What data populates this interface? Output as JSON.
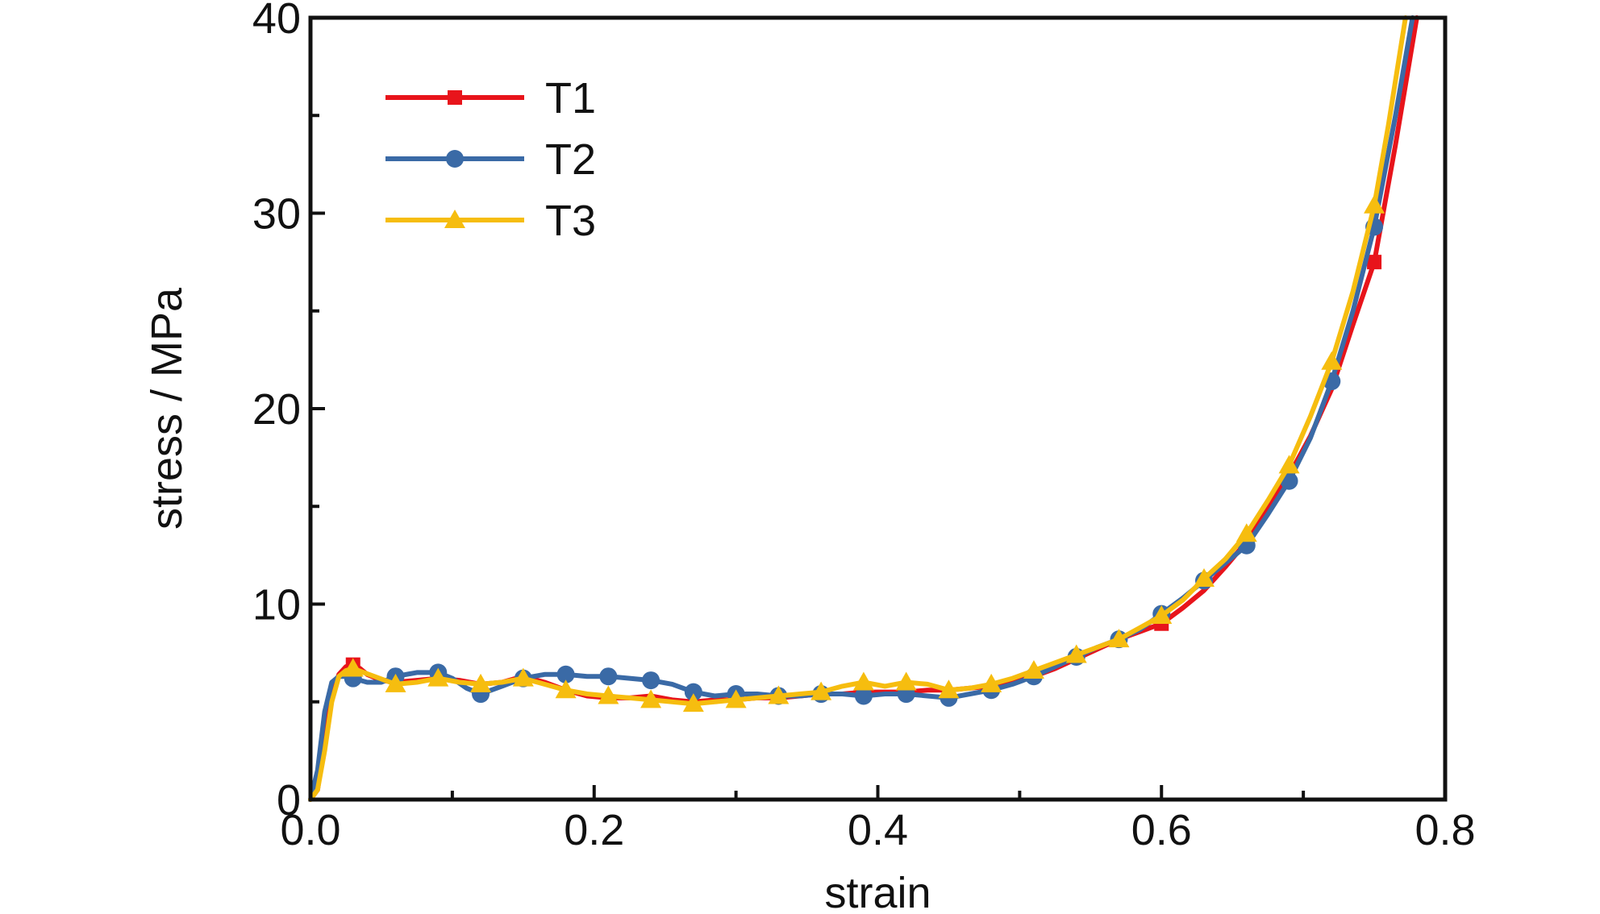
{
  "chart_data": {
    "type": "line",
    "title": "",
    "xlabel": "strain",
    "ylabel": "stress / MPa",
    "xlim": [
      0.0,
      0.8
    ],
    "ylim": [
      0,
      40
    ],
    "x_ticks": [
      0.0,
      0.2,
      0.4,
      0.6,
      0.8
    ],
    "x_tick_labels": [
      "0.0",
      "0.2",
      "0.4",
      "0.6",
      "0.8"
    ],
    "y_ticks": [
      0,
      10,
      20,
      30,
      40
    ],
    "y_tick_labels": [
      "0",
      "10",
      "20",
      "30",
      "40"
    ],
    "grid": false,
    "legend_position": "top-left",
    "series": [
      {
        "name": "T1",
        "color": "#e8141b",
        "marker": "square",
        "x": [
          0.0,
          0.005,
          0.01,
          0.015,
          0.02,
          0.025,
          0.03,
          0.035,
          0.04,
          0.05,
          0.06,
          0.075,
          0.09,
          0.105,
          0.12,
          0.135,
          0.15,
          0.165,
          0.18,
          0.195,
          0.21,
          0.225,
          0.24,
          0.255,
          0.27,
          0.285,
          0.3,
          0.315,
          0.33,
          0.345,
          0.36,
          0.375,
          0.39,
          0.405,
          0.42,
          0.435,
          0.45,
          0.465,
          0.48,
          0.495,
          0.51,
          0.525,
          0.54,
          0.555,
          0.57,
          0.585,
          0.6,
          0.615,
          0.63,
          0.645,
          0.66,
          0.675,
          0.69,
          0.705,
          0.72,
          0.735,
          0.75,
          0.765,
          0.78
        ],
        "y": [
          0.0,
          0.5,
          3.0,
          5.3,
          6.4,
          6.8,
          6.9,
          6.7,
          6.4,
          6.1,
          6.0,
          6.1,
          6.2,
          6.1,
          5.9,
          6.0,
          6.3,
          6.0,
          5.6,
          5.3,
          5.2,
          5.2,
          5.3,
          5.1,
          5.0,
          5.1,
          5.1,
          5.2,
          5.2,
          5.3,
          5.4,
          5.4,
          5.5,
          5.5,
          5.5,
          5.6,
          5.6,
          5.7,
          5.8,
          6.0,
          6.3,
          6.7,
          7.2,
          7.7,
          8.2,
          8.6,
          9.0,
          9.8,
          10.7,
          11.9,
          13.2,
          15.0,
          16.6,
          18.6,
          21.0,
          24.3,
          27.5,
          33.5,
          40.0
        ],
        "marker_x": [
          0.03,
          0.6,
          0.75
        ]
      },
      {
        "name": "T2",
        "color": "#3a6aa6",
        "marker": "circle",
        "x": [
          0.0,
          0.005,
          0.01,
          0.015,
          0.02,
          0.025,
          0.03,
          0.04,
          0.05,
          0.06,
          0.075,
          0.09,
          0.1,
          0.11,
          0.12,
          0.135,
          0.15,
          0.165,
          0.18,
          0.195,
          0.21,
          0.225,
          0.24,
          0.255,
          0.27,
          0.285,
          0.3,
          0.315,
          0.33,
          0.345,
          0.36,
          0.375,
          0.39,
          0.405,
          0.42,
          0.435,
          0.45,
          0.465,
          0.48,
          0.495,
          0.51,
          0.525,
          0.54,
          0.555,
          0.57,
          0.585,
          0.6,
          0.615,
          0.63,
          0.645,
          0.66,
          0.675,
          0.69,
          0.705,
          0.72,
          0.735,
          0.75,
          0.765,
          0.777
        ],
        "y": [
          0.0,
          1.5,
          4.5,
          6.0,
          6.3,
          6.3,
          6.2,
          6.0,
          6.0,
          6.3,
          6.5,
          6.5,
          6.2,
          5.7,
          5.4,
          5.8,
          6.2,
          6.4,
          6.4,
          6.3,
          6.3,
          6.2,
          6.1,
          5.9,
          5.5,
          5.3,
          5.4,
          5.4,
          5.3,
          5.3,
          5.4,
          5.4,
          5.3,
          5.4,
          5.4,
          5.3,
          5.2,
          5.4,
          5.6,
          5.9,
          6.3,
          6.8,
          7.3,
          7.8,
          8.2,
          8.7,
          9.5,
          10.3,
          11.2,
          12.1,
          13.0,
          14.6,
          16.3,
          18.5,
          21.4,
          25.0,
          29.3,
          35.0,
          40.0
        ],
        "marker_x": [
          0.03,
          0.06,
          0.09,
          0.12,
          0.15,
          0.18,
          0.21,
          0.24,
          0.27,
          0.3,
          0.33,
          0.36,
          0.39,
          0.42,
          0.45,
          0.48,
          0.51,
          0.54,
          0.57,
          0.6,
          0.63,
          0.66,
          0.69,
          0.72,
          0.75
        ]
      },
      {
        "name": "T3",
        "color": "#f6bd0f",
        "marker": "triangle",
        "x": [
          0.0,
          0.005,
          0.01,
          0.015,
          0.02,
          0.025,
          0.03,
          0.045,
          0.06,
          0.075,
          0.09,
          0.105,
          0.12,
          0.135,
          0.15,
          0.165,
          0.18,
          0.195,
          0.21,
          0.225,
          0.24,
          0.255,
          0.27,
          0.285,
          0.3,
          0.315,
          0.33,
          0.345,
          0.36,
          0.375,
          0.39,
          0.405,
          0.42,
          0.435,
          0.45,
          0.465,
          0.48,
          0.495,
          0.51,
          0.525,
          0.54,
          0.555,
          0.57,
          0.585,
          0.6,
          0.615,
          0.63,
          0.645,
          0.66,
          0.675,
          0.69,
          0.705,
          0.72,
          0.735,
          0.75,
          0.76,
          0.772
        ],
        "y": [
          0.0,
          0.5,
          2.5,
          5.0,
          6.3,
          6.6,
          6.7,
          6.3,
          5.9,
          6.0,
          6.2,
          6.0,
          5.9,
          6.0,
          6.2,
          5.9,
          5.6,
          5.4,
          5.3,
          5.2,
          5.1,
          5.0,
          4.9,
          5.0,
          5.1,
          5.2,
          5.3,
          5.4,
          5.5,
          5.8,
          6.0,
          5.8,
          6.0,
          5.9,
          5.6,
          5.7,
          5.9,
          6.2,
          6.6,
          7.0,
          7.4,
          7.8,
          8.2,
          8.8,
          9.4,
          10.2,
          11.3,
          12.3,
          13.6,
          15.3,
          17.1,
          19.6,
          22.4,
          26.0,
          30.4,
          34.5,
          40.0
        ],
        "marker_x": [
          0.03,
          0.06,
          0.09,
          0.12,
          0.15,
          0.18,
          0.21,
          0.24,
          0.27,
          0.3,
          0.33,
          0.36,
          0.39,
          0.42,
          0.45,
          0.48,
          0.51,
          0.54,
          0.57,
          0.6,
          0.63,
          0.66,
          0.69,
          0.72,
          0.75
        ]
      }
    ]
  }
}
